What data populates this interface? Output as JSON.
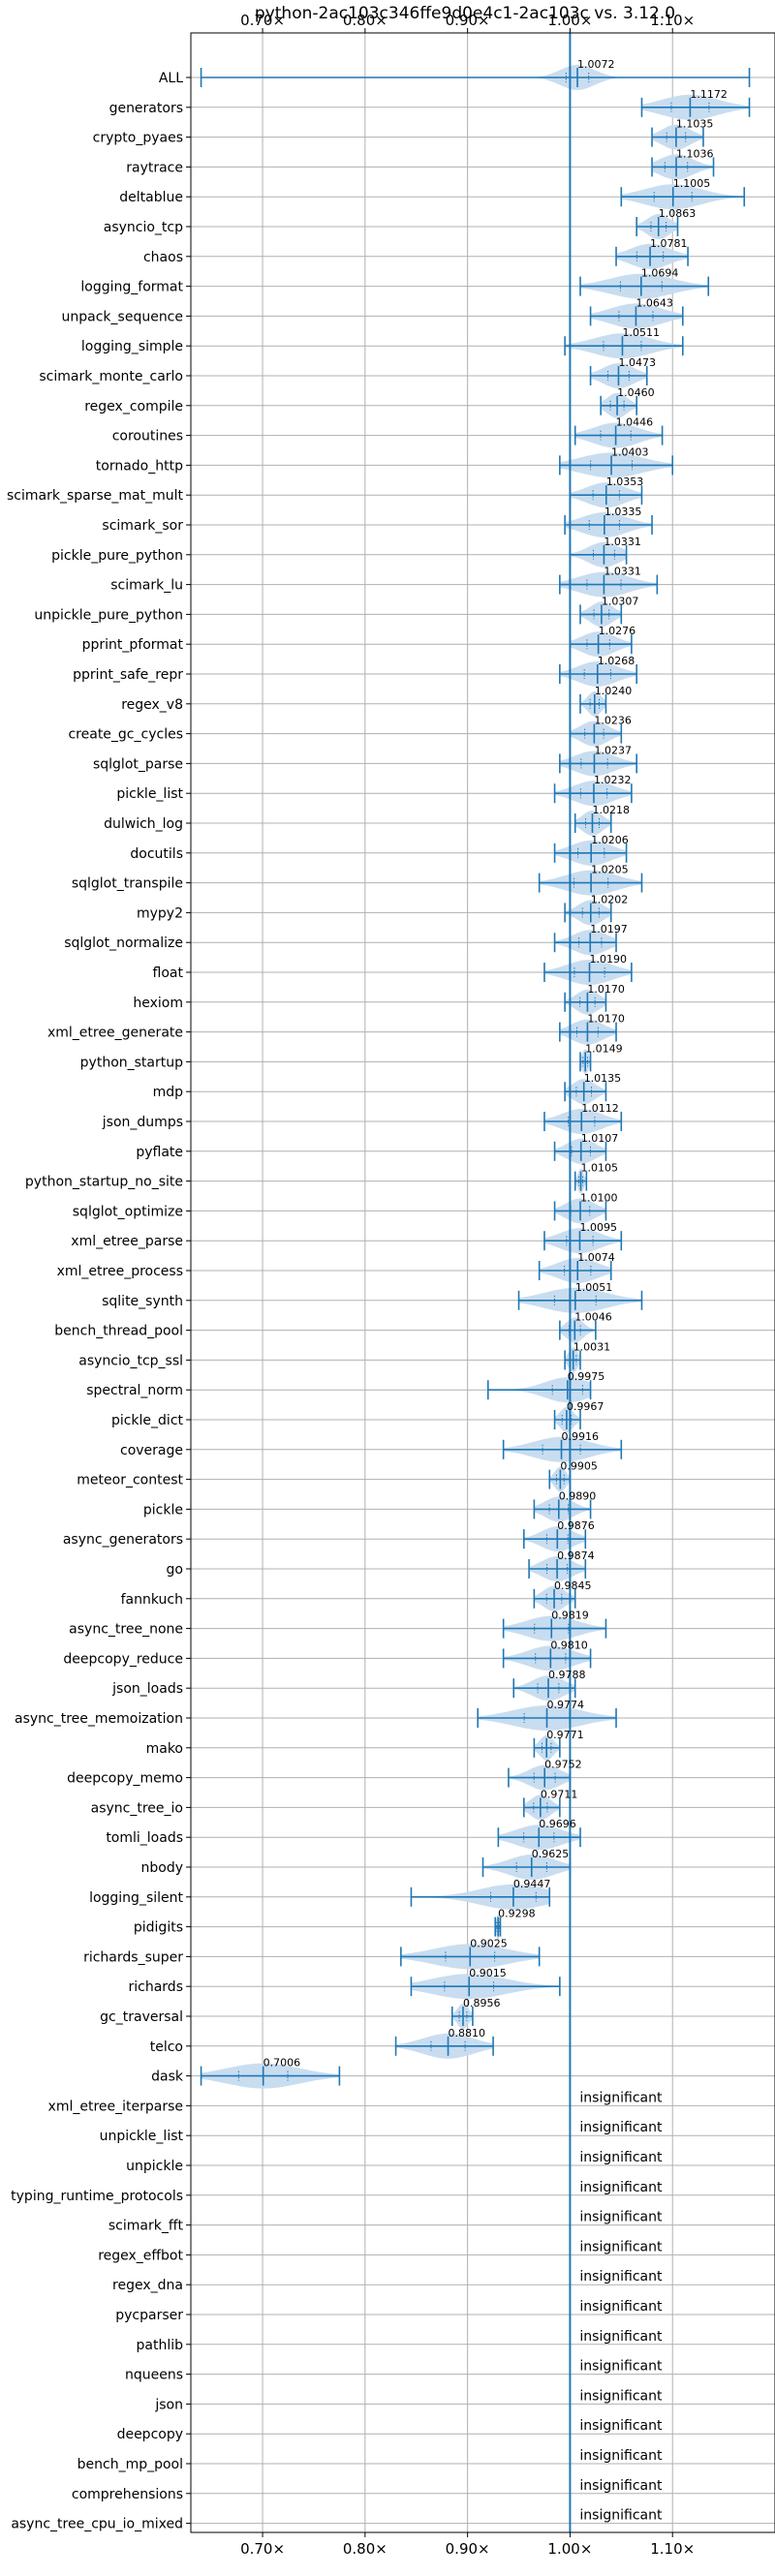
{
  "chart_data": {
    "type": "violin",
    "title": "python-2ac103c346ffe9d0e4c1-2ac103c vs. 3.12.0",
    "xlabel": "",
    "ylabel": "",
    "xlim": [
      0.63,
      1.2
    ],
    "xticks": [
      0.7,
      0.8,
      0.9,
      1.0,
      1.1
    ],
    "xtick_labels": [
      "0.70×",
      "0.80×",
      "0.90×",
      "1.00×",
      "1.10×"
    ],
    "reference_line": 1.0,
    "grid": true,
    "colors": {
      "violin": "#c6dbef",
      "line": "#1f77b4"
    },
    "insignificant_label": "insignificant",
    "benchmarks": [
      {
        "name": "ALL",
        "value": 1.0072,
        "label": "1.0072",
        "min": 0.64,
        "max": 1.175,
        "w": 0.03
      },
      {
        "name": "generators",
        "value": 1.1172,
        "label": "1.1172",
        "min": 1.07,
        "max": 1.175,
        "w": 0.05
      },
      {
        "name": "crypto_pyaes",
        "value": 1.1035,
        "label": "1.1035",
        "min": 1.08,
        "max": 1.13,
        "w": 0.025
      },
      {
        "name": "raytrace",
        "value": 1.1036,
        "label": "1.1036",
        "min": 1.08,
        "max": 1.14,
        "w": 0.03
      },
      {
        "name": "deltablue",
        "value": 1.1005,
        "label": "1.1005",
        "min": 1.05,
        "max": 1.17,
        "w": 0.05
      },
      {
        "name": "asyncio_tcp",
        "value": 1.0863,
        "label": "1.0863",
        "min": 1.065,
        "max": 1.105,
        "w": 0.02
      },
      {
        "name": "chaos",
        "value": 1.0781,
        "label": "1.0781",
        "min": 1.045,
        "max": 1.115,
        "w": 0.035
      },
      {
        "name": "logging_format",
        "value": 1.0694,
        "label": "1.0694",
        "min": 1.01,
        "max": 1.135,
        "w": 0.055
      },
      {
        "name": "unpack_sequence",
        "value": 1.0643,
        "label": "1.0643",
        "min": 1.02,
        "max": 1.11,
        "w": 0.045
      },
      {
        "name": "logging_simple",
        "value": 1.0511,
        "label": "1.0511",
        "min": 0.995,
        "max": 1.11,
        "w": 0.05
      },
      {
        "name": "scimark_monte_carlo",
        "value": 1.0473,
        "label": "1.0473",
        "min": 1.02,
        "max": 1.075,
        "w": 0.028
      },
      {
        "name": "regex_compile",
        "value": 1.046,
        "label": "1.0460",
        "min": 1.03,
        "max": 1.065,
        "w": 0.018
      },
      {
        "name": "coroutines",
        "value": 1.0446,
        "label": "1.0446",
        "min": 1.005,
        "max": 1.09,
        "w": 0.04
      },
      {
        "name": "tornado_http",
        "value": 1.0403,
        "label": "1.0403",
        "min": 0.99,
        "max": 1.1,
        "w": 0.055
      },
      {
        "name": "scimark_sparse_mat_mult",
        "value": 1.0353,
        "label": "1.0353",
        "min": 1.0,
        "max": 1.07,
        "w": 0.035
      },
      {
        "name": "scimark_sor",
        "value": 1.0335,
        "label": "1.0335",
        "min": 0.995,
        "max": 1.08,
        "w": 0.04
      },
      {
        "name": "pickle_pure_python",
        "value": 1.0331,
        "label": "1.0331",
        "min": 1.0,
        "max": 1.055,
        "w": 0.028
      },
      {
        "name": "scimark_lu",
        "value": 1.0331,
        "label": "1.0331",
        "min": 0.99,
        "max": 1.085,
        "w": 0.045
      },
      {
        "name": "unpickle_pure_python",
        "value": 1.0307,
        "label": "1.0307",
        "min": 1.01,
        "max": 1.05,
        "w": 0.02
      },
      {
        "name": "pprint_pformat",
        "value": 1.0276,
        "label": "1.0276",
        "min": 1.0,
        "max": 1.06,
        "w": 0.03
      },
      {
        "name": "pprint_safe_repr",
        "value": 1.0268,
        "label": "1.0268",
        "min": 0.99,
        "max": 1.065,
        "w": 0.035
      },
      {
        "name": "regex_v8",
        "value": 1.024,
        "label": "1.0240",
        "min": 1.01,
        "max": 1.035,
        "w": 0.012
      },
      {
        "name": "create_gc_cycles",
        "value": 1.0236,
        "label": "1.0236",
        "min": 1.0,
        "max": 1.05,
        "w": 0.025
      },
      {
        "name": "sqlglot_parse",
        "value": 1.0237,
        "label": "1.0237",
        "min": 0.99,
        "max": 1.065,
        "w": 0.035
      },
      {
        "name": "pickle_list",
        "value": 1.0232,
        "label": "1.0232",
        "min": 0.985,
        "max": 1.06,
        "w": 0.035
      },
      {
        "name": "dulwich_log",
        "value": 1.0218,
        "label": "1.0218",
        "min": 1.005,
        "max": 1.04,
        "w": 0.018
      },
      {
        "name": "docutils",
        "value": 1.0206,
        "label": "1.0206",
        "min": 0.985,
        "max": 1.055,
        "w": 0.035
      },
      {
        "name": "sqlglot_transpile",
        "value": 1.0205,
        "label": "1.0205",
        "min": 0.97,
        "max": 1.07,
        "w": 0.045
      },
      {
        "name": "mypy2",
        "value": 1.0202,
        "label": "1.0202",
        "min": 0.995,
        "max": 1.04,
        "w": 0.022
      },
      {
        "name": "sqlglot_normalize",
        "value": 1.0197,
        "label": "1.0197",
        "min": 0.985,
        "max": 1.045,
        "w": 0.03
      },
      {
        "name": "float",
        "value": 1.019,
        "label": "1.0190",
        "min": 0.975,
        "max": 1.06,
        "w": 0.04
      },
      {
        "name": "hexiom",
        "value": 1.017,
        "label": "1.0170",
        "min": 0.995,
        "max": 1.035,
        "w": 0.02
      },
      {
        "name": "xml_etree_generate",
        "value": 1.017,
        "label": "1.0170",
        "min": 0.99,
        "max": 1.045,
        "w": 0.028
      },
      {
        "name": "python_startup",
        "value": 1.0149,
        "label": "1.0149",
        "min": 1.01,
        "max": 1.02,
        "w": 0.006
      },
      {
        "name": "mdp",
        "value": 1.0135,
        "label": "1.0135",
        "min": 0.995,
        "max": 1.035,
        "w": 0.02
      },
      {
        "name": "json_dumps",
        "value": 1.0112,
        "label": "1.0112",
        "min": 0.975,
        "max": 1.05,
        "w": 0.035
      },
      {
        "name": "pyflate",
        "value": 1.0107,
        "label": "1.0107",
        "min": 0.985,
        "max": 1.035,
        "w": 0.025
      },
      {
        "name": "python_startup_no_site",
        "value": 1.0105,
        "label": "1.0105",
        "min": 1.005,
        "max": 1.016,
        "w": 0.005
      },
      {
        "name": "sqlglot_optimize",
        "value": 1.01,
        "label": "1.0100",
        "min": 0.985,
        "max": 1.035,
        "w": 0.025
      },
      {
        "name": "xml_etree_parse",
        "value": 1.0095,
        "label": "1.0095",
        "min": 0.975,
        "max": 1.05,
        "w": 0.035
      },
      {
        "name": "xml_etree_process",
        "value": 1.0074,
        "label": "1.0074",
        "min": 0.97,
        "max": 1.04,
        "w": 0.035
      },
      {
        "name": "sqlite_synth",
        "value": 1.0051,
        "label": "1.0051",
        "min": 0.95,
        "max": 1.07,
        "w": 0.055
      },
      {
        "name": "bench_thread_pool",
        "value": 1.0046,
        "label": "1.0046",
        "min": 0.99,
        "max": 1.025,
        "w": 0.015
      },
      {
        "name": "asyncio_tcp_ssl",
        "value": 1.0031,
        "label": "1.0031",
        "min": 0.995,
        "max": 1.01,
        "w": 0.008
      },
      {
        "name": "spectral_norm",
        "value": 0.9975,
        "label": "0.9975",
        "min": 0.92,
        "max": 1.02,
        "w": 0.04
      },
      {
        "name": "pickle_dict",
        "value": 0.9967,
        "label": "0.9967",
        "min": 0.985,
        "max": 1.01,
        "w": 0.012
      },
      {
        "name": "coverage",
        "value": 0.9916,
        "label": "0.9916",
        "min": 0.935,
        "max": 1.05,
        "w": 0.05
      },
      {
        "name": "meteor_contest",
        "value": 0.9905,
        "label": "0.9905",
        "min": 0.98,
        "max": 1.0,
        "w": 0.01
      },
      {
        "name": "pickle",
        "value": 0.989,
        "label": "0.9890",
        "min": 0.965,
        "max": 1.02,
        "w": 0.025
      },
      {
        "name": "async_generators",
        "value": 0.9876,
        "label": "0.9876",
        "min": 0.955,
        "max": 1.015,
        "w": 0.028
      },
      {
        "name": "go",
        "value": 0.9874,
        "label": "0.9874",
        "min": 0.96,
        "max": 1.015,
        "w": 0.027
      },
      {
        "name": "fannkuch",
        "value": 0.9845,
        "label": "0.9845",
        "min": 0.965,
        "max": 1.005,
        "w": 0.02
      },
      {
        "name": "async_tree_none",
        "value": 0.9819,
        "label": "0.9819",
        "min": 0.935,
        "max": 1.035,
        "w": 0.045
      },
      {
        "name": "deepcopy_reduce",
        "value": 0.981,
        "label": "0.9810",
        "min": 0.935,
        "max": 1.02,
        "w": 0.04
      },
      {
        "name": "json_loads",
        "value": 0.9788,
        "label": "0.9788",
        "min": 0.945,
        "max": 1.005,
        "w": 0.028
      },
      {
        "name": "async_tree_memoization",
        "value": 0.9774,
        "label": "0.9774",
        "min": 0.91,
        "max": 1.045,
        "w": 0.06
      },
      {
        "name": "mako",
        "value": 0.9771,
        "label": "0.9771",
        "min": 0.965,
        "max": 0.99,
        "w": 0.012
      },
      {
        "name": "deepcopy_memo",
        "value": 0.9752,
        "label": "0.9752",
        "min": 0.94,
        "max": 1.0,
        "w": 0.028
      },
      {
        "name": "async_tree_io",
        "value": 0.9711,
        "label": "0.9711",
        "min": 0.955,
        "max": 0.99,
        "w": 0.018
      },
      {
        "name": "tomli_loads",
        "value": 0.9696,
        "label": "0.9696",
        "min": 0.93,
        "max": 1.01,
        "w": 0.04
      },
      {
        "name": "nbody",
        "value": 0.9625,
        "label": "0.9625",
        "min": 0.915,
        "max": 1.0,
        "w": 0.04
      },
      {
        "name": "logging_silent",
        "value": 0.9447,
        "label": "0.9447",
        "min": 0.845,
        "max": 0.98,
        "w": 0.06
      },
      {
        "name": "pidigits",
        "value": 0.9298,
        "label": "0.9298",
        "min": 0.927,
        "max": 0.932,
        "w": 0.003
      },
      {
        "name": "richards_super",
        "value": 0.9025,
        "label": "0.9025",
        "min": 0.835,
        "max": 0.97,
        "w": 0.065
      },
      {
        "name": "richards",
        "value": 0.9015,
        "label": "0.9015",
        "min": 0.845,
        "max": 0.99,
        "w": 0.065
      },
      {
        "name": "gc_traversal",
        "value": 0.8956,
        "label": "0.8956",
        "min": 0.885,
        "max": 0.905,
        "w": 0.01
      },
      {
        "name": "telco",
        "value": 0.881,
        "label": "0.8810",
        "min": 0.83,
        "max": 0.925,
        "w": 0.045
      },
      {
        "name": "dask",
        "value": 0.7006,
        "label": "0.7006",
        "min": 0.64,
        "max": 0.775,
        "w": 0.065
      },
      {
        "name": "xml_etree_iterparse",
        "insignificant": true
      },
      {
        "name": "unpickle_list",
        "insignificant": true
      },
      {
        "name": "unpickle",
        "insignificant": true
      },
      {
        "name": "typing_runtime_protocols",
        "insignificant": true
      },
      {
        "name": "scimark_fft",
        "insignificant": true
      },
      {
        "name": "regex_effbot",
        "insignificant": true
      },
      {
        "name": "regex_dna",
        "insignificant": true
      },
      {
        "name": "pycparser",
        "insignificant": true
      },
      {
        "name": "pathlib",
        "insignificant": true
      },
      {
        "name": "nqueens",
        "insignificant": true
      },
      {
        "name": "json",
        "insignificant": true
      },
      {
        "name": "deepcopy",
        "insignificant": true
      },
      {
        "name": "bench_mp_pool",
        "insignificant": true
      },
      {
        "name": "comprehensions",
        "insignificant": true
      },
      {
        "name": "async_tree_cpu_io_mixed",
        "insignificant": true
      }
    ]
  }
}
